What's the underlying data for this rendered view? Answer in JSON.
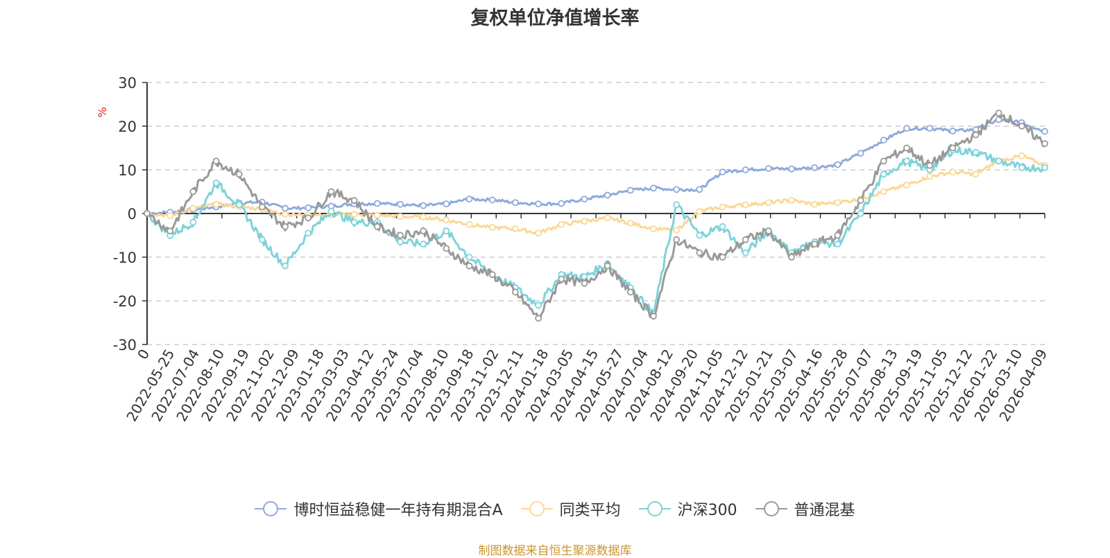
{
  "title": "复权单位净值增长率",
  "source": "制图数据来自恒生聚源数据库",
  "chart_data": {
    "type": "line",
    "title": "复权单位净值增长率",
    "ylabel": "%",
    "ylim": [
      -30,
      30
    ],
    "yticks": [
      30,
      20,
      10,
      0,
      -10,
      -20,
      -30
    ],
    "grid": true,
    "legend_position": "bottom",
    "x_ticks": [
      "0",
      "2022-05-25",
      "2022-07-04",
      "2022-08-10",
      "2022-09-19",
      "2022-11-02",
      "2022-12-09",
      "2023-01-18",
      "2023-03-03",
      "2023-04-12",
      "2023-05-24",
      "2023-07-04",
      "2023-08-10",
      "2023-09-18",
      "2023-11-02",
      "2023-12-11",
      "2024-01-18",
      "2024-03-05",
      "2024-04-15",
      "2024-05-27",
      "2024-07-04",
      "2024-08-12",
      "2024-09-20",
      "2024-11-05",
      "2024-12-12",
      "2025-01-21",
      "2025-03-07",
      "2025-04-16",
      "2025-05-28",
      "2025-07-07",
      "2025-08-13",
      "2025-09-19",
      "2025-11-05",
      "2025-12-12",
      "2026-01-22",
      "2026-03-10",
      "2026-04-09"
    ],
    "series": [
      {
        "name": "博时恒益稳健一年持有期混合A",
        "color": "#8fa9db",
        "values": [
          0,
          0.3,
          0.9,
          1.5,
          2.4,
          2.6,
          1.2,
          1.3,
          1.7,
          2.2,
          2.3,
          2.1,
          1.8,
          2.2,
          3.3,
          3.1,
          2.5,
          2.2,
          2.3,
          3.3,
          4.2,
          5.3,
          5.8,
          5.5,
          5.5,
          9.5,
          10.0,
          10.3,
          10.2,
          10.5,
          11.2,
          13.8,
          16.8,
          19.5,
          19.5,
          18.9,
          19.2,
          21.5,
          20.8,
          18.8
        ]
      },
      {
        "name": "同类平均",
        "color": "#fcd796",
        "values": [
          0,
          -0.5,
          1.2,
          2.1,
          1.6,
          1.0,
          -0.2,
          -0.4,
          -0.3,
          -0.2,
          -0.4,
          -0.7,
          -0.8,
          -1.5,
          -2.5,
          -3.2,
          -3.5,
          -4.5,
          -2.5,
          -1.8,
          -1.0,
          -2.2,
          -3.5,
          -3.8,
          0.5,
          1.5,
          2.0,
          2.5,
          3.0,
          2.1,
          2.5,
          3.3,
          5.0,
          6.5,
          8.5,
          9.5,
          9.0,
          12.0,
          13.2,
          11.0
        ]
      },
      {
        "name": "沪深300",
        "color": "#7dd3d9",
        "values": [
          0,
          -5.0,
          -2.0,
          7.0,
          2.0,
          -6.0,
          -12.0,
          -4.5,
          0.5,
          -2.0,
          -2.0,
          -6.5,
          -7.0,
          -4.0,
          -10.0,
          -14.0,
          -17.0,
          -21.0,
          -14.0,
          -14.5,
          -11.5,
          -17.0,
          -23.0,
          2.0,
          -5.0,
          -3.0,
          -9.0,
          -4.0,
          -9.0,
          -6.5,
          -7.0,
          0.0,
          9.0,
          12.0,
          10.0,
          14.5,
          14.0,
          12.0,
          10.5,
          10.5
        ]
      },
      {
        "name": "普通混基",
        "color": "#999999",
        "values": [
          0,
          -4.0,
          5.0,
          12.0,
          9.0,
          1.5,
          -3.0,
          -1.0,
          5.0,
          3.0,
          -3.0,
          -5.0,
          -4.0,
          -8.0,
          -12.0,
          -14.0,
          -18.0,
          -24.0,
          -15.0,
          -16.0,
          -12.0,
          -18.0,
          -23.5,
          -6.0,
          -9.0,
          -10.0,
          -6.0,
          -4.0,
          -10.0,
          -7.0,
          -5.0,
          3.0,
          12.0,
          15.0,
          11.0,
          15.0,
          18.0,
          23.0,
          20.0,
          16.0
        ]
      }
    ]
  }
}
